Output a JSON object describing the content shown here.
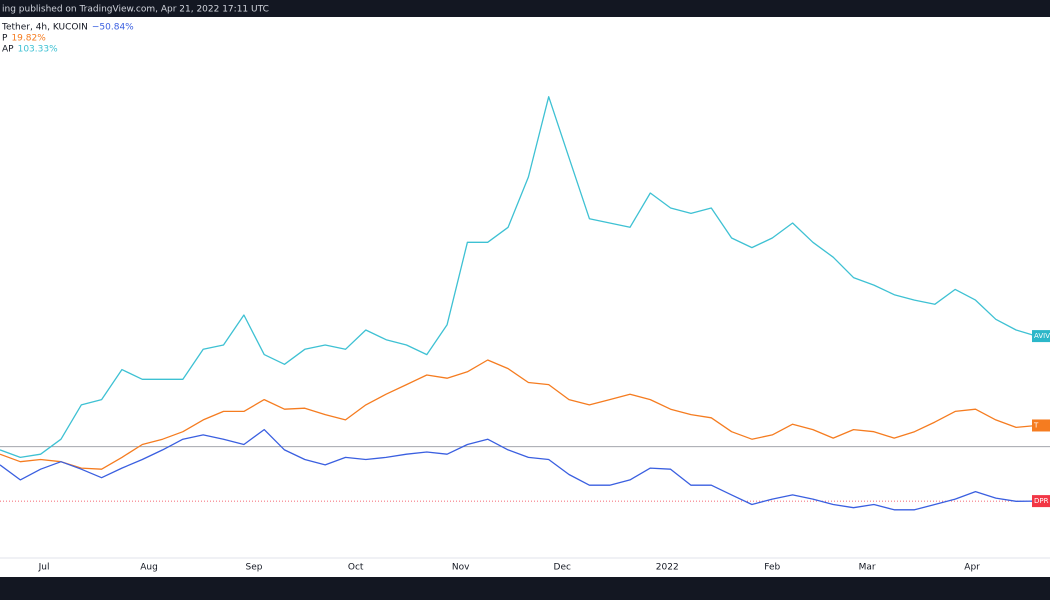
{
  "chart_data": {
    "type": "line",
    "caption": "ing published on TradingView.com, Apr 21, 2022 17:11 UTC",
    "x": [
      -13,
      -7,
      -1,
      5,
      11,
      17,
      23,
      29,
      35,
      41,
      47,
      53,
      59,
      65,
      71,
      77,
      83,
      89,
      95,
      101,
      107,
      113,
      119,
      125,
      131,
      137,
      143,
      149,
      155,
      161,
      167,
      173,
      179,
      185,
      191,
      197,
      203,
      209,
      215,
      221,
      227,
      233,
      239,
      245,
      251,
      257,
      263,
      269,
      275,
      281,
      287,
      293
    ],
    "xlim": [
      -13,
      297
    ],
    "xticks": [
      {
        "value": 0,
        "label": "Jul"
      },
      {
        "value": 31,
        "label": "Aug"
      },
      {
        "value": 62,
        "label": "Sep"
      },
      {
        "value": 92,
        "label": "Oct"
      },
      {
        "value": 123,
        "label": "Nov"
      },
      {
        "value": 153,
        "label": "Dec"
      },
      {
        "value": 184,
        "label": "2022"
      },
      {
        "value": 215,
        "label": "Feb"
      },
      {
        "value": 243,
        "label": "Mar"
      },
      {
        "value": 274,
        "label": "Apr"
      }
    ],
    "ylim": [
      -104,
      408
    ],
    "baseline": 0,
    "series": [
      {
        "name": "Tether, 4h, KUCOIN",
        "color": "#3a5fe0",
        "tag": "DPR",
        "tag_color": "#f23645",
        "values": [
          -17,
          -31,
          -21,
          -14,
          -21,
          -29,
          -20,
          -12,
          -3,
          7,
          11,
          7,
          2,
          16,
          -3,
          -12,
          -17,
          -10,
          -12,
          -10,
          -7,
          -5,
          -7,
          2,
          7,
          -3,
          -10,
          -12,
          -26,
          -36,
          -36,
          -31,
          -20,
          -21,
          -36,
          -36,
          -45,
          -54,
          -49,
          -45,
          -49,
          -54,
          -57,
          -54,
          -59,
          -59,
          -54,
          -49,
          -42,
          -48,
          -51,
          -50.84
        ],
        "value_labels": [
          null,
          null,
          null,
          null,
          null,
          null,
          null,
          null,
          null,
          null,
          null,
          null,
          null,
          null,
          null,
          null,
          null,
          null,
          null,
          null,
          null,
          null,
          null,
          null,
          null,
          null,
          null,
          null,
          null,
          null,
          null,
          null,
          null,
          null,
          null,
          null,
          null,
          null,
          null,
          null,
          null,
          null,
          null,
          null,
          null,
          null,
          null,
          null,
          null,
          null,
          null,
          "−50.84%"
        ]
      },
      {
        "name": "P",
        "color": "#f57c20",
        "tag": "T",
        "tag_color": "#f57c20",
        "values": [
          -7,
          -14,
          -12,
          -14,
          -20,
          -21,
          -10,
          2,
          7,
          14,
          25,
          33,
          33,
          44,
          35,
          36,
          30,
          25,
          39,
          49,
          58,
          67,
          64,
          70,
          81,
          73,
          60,
          58,
          44,
          39,
          44,
          49,
          44,
          35,
          30,
          27,
          14,
          7,
          11,
          21,
          16,
          8,
          16,
          14,
          8,
          14,
          23,
          33,
          35,
          25,
          18,
          19.82
        ],
        "value_labels": [
          null,
          null,
          null,
          null,
          null,
          null,
          null,
          null,
          null,
          null,
          null,
          null,
          null,
          null,
          null,
          null,
          null,
          null,
          null,
          null,
          null,
          null,
          null,
          null,
          null,
          null,
          null,
          null,
          null,
          null,
          null,
          null,
          null,
          null,
          null,
          null,
          null,
          null,
          null,
          null,
          null,
          null,
          null,
          null,
          null,
          null,
          null,
          null,
          null,
          null,
          null,
          "19.82%"
        ]
      },
      {
        "name": "AP",
        "color": "#3ec1d3",
        "tag": "AVIV",
        "tag_color": "#2bb7c9",
        "values": [
          -3,
          -10,
          -7,
          7,
          39,
          44,
          72,
          63,
          63,
          63,
          91,
          95,
          123,
          86,
          77,
          91,
          95,
          91,
          109,
          100,
          95,
          86,
          114,
          191,
          191,
          205,
          252,
          327,
          270,
          213,
          209,
          205,
          237,
          223,
          218,
          223,
          195,
          186,
          195,
          209,
          191,
          177,
          158,
          151,
          142,
          137,
          133,
          147,
          137,
          119,
          109,
          103.33
        ],
        "value_labels": [
          null,
          null,
          null,
          null,
          null,
          null,
          null,
          null,
          null,
          null,
          null,
          null,
          null,
          null,
          null,
          null,
          null,
          null,
          null,
          null,
          null,
          null,
          null,
          null,
          null,
          null,
          null,
          null,
          null,
          null,
          null,
          null,
          null,
          null,
          null,
          null,
          null,
          null,
          null,
          null,
          null,
          null,
          null,
          null,
          null,
          null,
          null,
          null,
          null,
          null,
          null,
          "103.33%"
        ]
      }
    ]
  }
}
